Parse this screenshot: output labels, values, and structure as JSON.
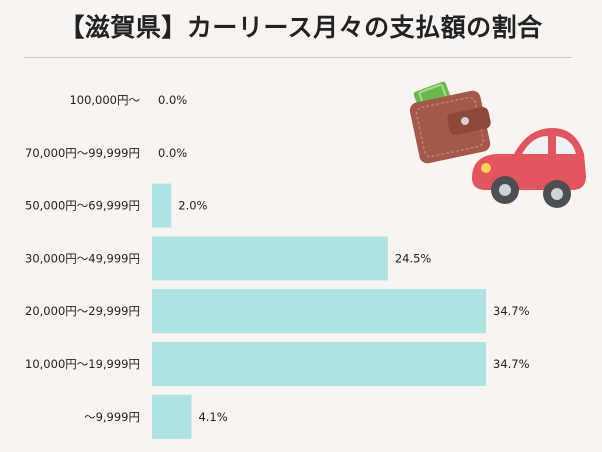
{
  "title": "【滋賀県】カーリース月々の支払額の割合",
  "chart_data": {
    "type": "bar",
    "orientation": "horizontal",
    "categories": [
      "100,000円～",
      "70,000円～99,999円",
      "50,000円～69,999円",
      "30,000円～49,999円",
      "20,000円～29,999円",
      "10,000円～19,999円",
      "～9,999円"
    ],
    "values": [
      0.0,
      0.0,
      2.0,
      24.5,
      34.7,
      34.7,
      4.1
    ],
    "labels": [
      "0.0%",
      "0.0%",
      "2.0%",
      "24.5%",
      "34.7%",
      "34.7%",
      "4.1%"
    ],
    "unit": "%",
    "xlim": [
      0,
      34.7
    ],
    "bar_color": "#aee3e2",
    "grid": false,
    "legend": "none"
  },
  "illustration": {
    "icons": [
      "wallet-icon",
      "car-icon"
    ]
  }
}
